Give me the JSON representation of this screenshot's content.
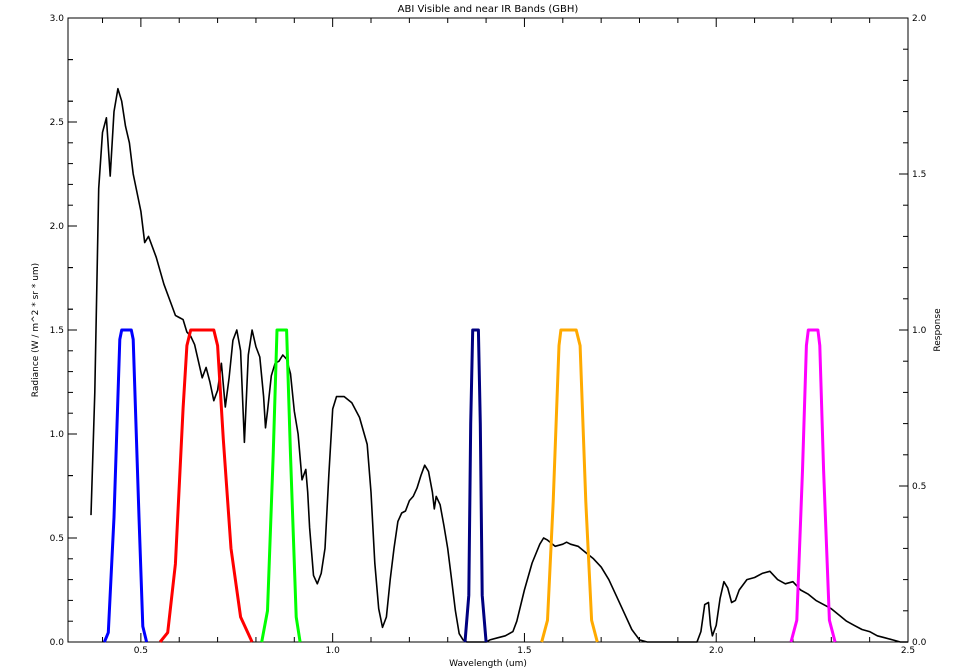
{
  "chart_data": {
    "type": "line",
    "title": "ABI Visible and near IR Bands (GBH)",
    "xlabel": "Wavelength (um)",
    "ylabel": "Radiance (W / m^2 * sr * um)",
    "y2label": "Response",
    "xlim": [
      0.31,
      2.5
    ],
    "ylim": [
      0,
      3.0
    ],
    "y2lim": [
      0,
      2.0
    ],
    "x_ticks": [
      {
        "value": 0.5,
        "label": "0.5"
      },
      {
        "value": 1.0,
        "label": "1.0"
      },
      {
        "value": 1.5,
        "label": "1.5"
      },
      {
        "value": 2.0,
        "label": "2.0"
      },
      {
        "value": 2.5,
        "label": "2.5"
      }
    ],
    "y_ticks": [
      {
        "value": 0.0,
        "label": "0.0"
      },
      {
        "value": 0.5,
        "label": "0.5"
      },
      {
        "value": 1.0,
        "label": "1.0"
      },
      {
        "value": 1.5,
        "label": "1.5"
      },
      {
        "value": 2.0,
        "label": "2.0"
      },
      {
        "value": 2.5,
        "label": "2.5"
      },
      {
        "value": 3.0,
        "label": "3.0"
      }
    ],
    "y2_ticks": [
      {
        "value": 0.0,
        "label": "0.0"
      },
      {
        "value": 0.5,
        "label": "0.5"
      },
      {
        "value": 1.0,
        "label": "1.0"
      },
      {
        "value": 1.5,
        "label": "1.5"
      },
      {
        "value": 2.0,
        "label": "2.0"
      }
    ],
    "grid": false,
    "legend": "none",
    "series": [
      {
        "axis": "left",
        "color": "#000000",
        "points": [
          [
            0.37,
            0.61
          ],
          [
            0.38,
            1.2
          ],
          [
            0.39,
            2.18
          ],
          [
            0.4,
            2.45
          ],
          [
            0.41,
            2.52
          ],
          [
            0.42,
            2.24
          ],
          [
            0.43,
            2.55
          ],
          [
            0.44,
            2.66
          ],
          [
            0.45,
            2.6
          ],
          [
            0.46,
            2.48
          ],
          [
            0.47,
            2.4
          ],
          [
            0.48,
            2.25
          ],
          [
            0.5,
            2.07
          ],
          [
            0.51,
            1.92
          ],
          [
            0.52,
            1.95
          ],
          [
            0.54,
            1.85
          ],
          [
            0.56,
            1.72
          ],
          [
            0.58,
            1.62
          ],
          [
            0.59,
            1.57
          ],
          [
            0.6,
            1.56
          ],
          [
            0.61,
            1.55
          ],
          [
            0.62,
            1.49
          ],
          [
            0.63,
            1.47
          ],
          [
            0.64,
            1.43
          ],
          [
            0.65,
            1.35
          ],
          [
            0.66,
            1.27
          ],
          [
            0.67,
            1.32
          ],
          [
            0.68,
            1.25
          ],
          [
            0.69,
            1.16
          ],
          [
            0.7,
            1.21
          ],
          [
            0.71,
            1.34
          ],
          [
            0.72,
            1.13
          ],
          [
            0.73,
            1.27
          ],
          [
            0.74,
            1.45
          ],
          [
            0.75,
            1.5
          ],
          [
            0.76,
            1.4
          ],
          [
            0.77,
            0.96
          ],
          [
            0.78,
            1.38
          ],
          [
            0.79,
            1.5
          ],
          [
            0.8,
            1.42
          ],
          [
            0.81,
            1.37
          ],
          [
            0.82,
            1.18
          ],
          [
            0.825,
            1.03
          ],
          [
            0.83,
            1.11
          ],
          [
            0.84,
            1.28
          ],
          [
            0.85,
            1.34
          ],
          [
            0.86,
            1.35
          ],
          [
            0.87,
            1.38
          ],
          [
            0.88,
            1.36
          ],
          [
            0.89,
            1.29
          ],
          [
            0.9,
            1.11
          ],
          [
            0.91,
            1.0
          ],
          [
            0.92,
            0.78
          ],
          [
            0.93,
            0.83
          ],
          [
            0.935,
            0.72
          ],
          [
            0.94,
            0.55
          ],
          [
            0.95,
            0.32
          ],
          [
            0.96,
            0.28
          ],
          [
            0.97,
            0.33
          ],
          [
            0.98,
            0.45
          ],
          [
            0.99,
            0.8
          ],
          [
            1.0,
            1.12
          ],
          [
            1.01,
            1.18
          ],
          [
            1.03,
            1.18
          ],
          [
            1.05,
            1.15
          ],
          [
            1.07,
            1.08
          ],
          [
            1.09,
            0.95
          ],
          [
            1.1,
            0.72
          ],
          [
            1.11,
            0.38
          ],
          [
            1.12,
            0.16
          ],
          [
            1.13,
            0.07
          ],
          [
            1.14,
            0.12
          ],
          [
            1.15,
            0.3
          ],
          [
            1.16,
            0.45
          ],
          [
            1.17,
            0.58
          ],
          [
            1.18,
            0.62
          ],
          [
            1.19,
            0.63
          ],
          [
            1.2,
            0.68
          ],
          [
            1.21,
            0.7
          ],
          [
            1.22,
            0.74
          ],
          [
            1.23,
            0.8
          ],
          [
            1.24,
            0.85
          ],
          [
            1.25,
            0.82
          ],
          [
            1.26,
            0.72
          ],
          [
            1.265,
            0.64
          ],
          [
            1.27,
            0.7
          ],
          [
            1.28,
            0.66
          ],
          [
            1.29,
            0.56
          ],
          [
            1.3,
            0.45
          ],
          [
            1.31,
            0.3
          ],
          [
            1.32,
            0.15
          ],
          [
            1.33,
            0.04
          ],
          [
            1.34,
            0.01
          ],
          [
            1.35,
            0.0
          ],
          [
            1.4,
            0.0
          ],
          [
            1.41,
            0.01
          ],
          [
            1.43,
            0.02
          ],
          [
            1.45,
            0.03
          ],
          [
            1.47,
            0.05
          ],
          [
            1.48,
            0.1
          ],
          [
            1.5,
            0.25
          ],
          [
            1.52,
            0.38
          ],
          [
            1.54,
            0.47
          ],
          [
            1.55,
            0.5
          ],
          [
            1.56,
            0.49
          ],
          [
            1.58,
            0.46
          ],
          [
            1.6,
            0.47
          ],
          [
            1.61,
            0.48
          ],
          [
            1.62,
            0.47
          ],
          [
            1.64,
            0.46
          ],
          [
            1.66,
            0.43
          ],
          [
            1.68,
            0.4
          ],
          [
            1.7,
            0.36
          ],
          [
            1.72,
            0.3
          ],
          [
            1.74,
            0.22
          ],
          [
            1.76,
            0.14
          ],
          [
            1.78,
            0.06
          ],
          [
            1.8,
            0.01
          ],
          [
            1.82,
            0.0
          ],
          [
            1.95,
            0.0
          ],
          [
            1.96,
            0.05
          ],
          [
            1.97,
            0.18
          ],
          [
            1.98,
            0.19
          ],
          [
            1.985,
            0.08
          ],
          [
            1.99,
            0.03
          ],
          [
            2.0,
            0.08
          ],
          [
            2.01,
            0.21
          ],
          [
            2.02,
            0.29
          ],
          [
            2.03,
            0.26
          ],
          [
            2.04,
            0.19
          ],
          [
            2.05,
            0.2
          ],
          [
            2.06,
            0.25
          ],
          [
            2.08,
            0.3
          ],
          [
            2.1,
            0.31
          ],
          [
            2.12,
            0.33
          ],
          [
            2.14,
            0.34
          ],
          [
            2.16,
            0.3
          ],
          [
            2.18,
            0.28
          ],
          [
            2.2,
            0.29
          ],
          [
            2.22,
            0.25
          ],
          [
            2.24,
            0.23
          ],
          [
            2.26,
            0.2
          ],
          [
            2.28,
            0.18
          ],
          [
            2.3,
            0.16
          ],
          [
            2.32,
            0.13
          ],
          [
            2.34,
            0.1
          ],
          [
            2.36,
            0.08
          ],
          [
            2.38,
            0.06
          ],
          [
            2.4,
            0.05
          ],
          [
            2.42,
            0.03
          ],
          [
            2.44,
            0.02
          ],
          [
            2.46,
            0.01
          ],
          [
            2.48,
            0.0
          ],
          [
            2.5,
            0.0
          ]
        ]
      },
      {
        "axis": "right",
        "color": "#0000ff",
        "points": [
          [
            0.405,
            0
          ],
          [
            0.415,
            0.03
          ],
          [
            0.43,
            0.4
          ],
          [
            0.445,
            0.97
          ],
          [
            0.45,
            1
          ],
          [
            0.475,
            1
          ],
          [
            0.48,
            0.97
          ],
          [
            0.495,
            0.4
          ],
          [
            0.505,
            0.05
          ],
          [
            0.515,
            0
          ]
        ]
      },
      {
        "axis": "right",
        "color": "#ff0000",
        "points": [
          [
            0.55,
            0
          ],
          [
            0.57,
            0.03
          ],
          [
            0.59,
            0.25
          ],
          [
            0.61,
            0.75
          ],
          [
            0.62,
            0.95
          ],
          [
            0.63,
            1
          ],
          [
            0.69,
            1
          ],
          [
            0.7,
            0.95
          ],
          [
            0.715,
            0.65
          ],
          [
            0.735,
            0.3
          ],
          [
            0.76,
            0.08
          ],
          [
            0.79,
            0
          ]
        ]
      },
      {
        "axis": "right",
        "color": "#00ff00",
        "points": [
          [
            0.815,
            0
          ],
          [
            0.83,
            0.1
          ],
          [
            0.845,
            0.6
          ],
          [
            0.855,
            1
          ],
          [
            0.88,
            1
          ],
          [
            0.89,
            0.6
          ],
          [
            0.905,
            0.08
          ],
          [
            0.915,
            0
          ]
        ]
      },
      {
        "axis": "right",
        "color": "#000080",
        "points": [
          [
            1.345,
            0
          ],
          [
            1.355,
            0.15
          ],
          [
            1.36,
            0.7
          ],
          [
            1.365,
            1
          ],
          [
            1.38,
            1
          ],
          [
            1.385,
            0.7
          ],
          [
            1.39,
            0.15
          ],
          [
            1.4,
            0
          ]
        ]
      },
      {
        "axis": "right",
        "color": "#ffaa00",
        "points": [
          [
            1.545,
            0
          ],
          [
            1.56,
            0.07
          ],
          [
            1.575,
            0.45
          ],
          [
            1.59,
            0.95
          ],
          [
            1.595,
            1
          ],
          [
            1.635,
            1
          ],
          [
            1.645,
            0.95
          ],
          [
            1.66,
            0.45
          ],
          [
            1.675,
            0.07
          ],
          [
            1.69,
            0
          ]
        ]
      },
      {
        "axis": "right",
        "color": "#ff00ff",
        "points": [
          [
            2.195,
            0
          ],
          [
            2.21,
            0.07
          ],
          [
            2.225,
            0.55
          ],
          [
            2.235,
            0.95
          ],
          [
            2.24,
            1
          ],
          [
            2.265,
            1
          ],
          [
            2.27,
            0.95
          ],
          [
            2.28,
            0.55
          ],
          [
            2.295,
            0.07
          ],
          [
            2.31,
            0
          ]
        ]
      }
    ]
  }
}
